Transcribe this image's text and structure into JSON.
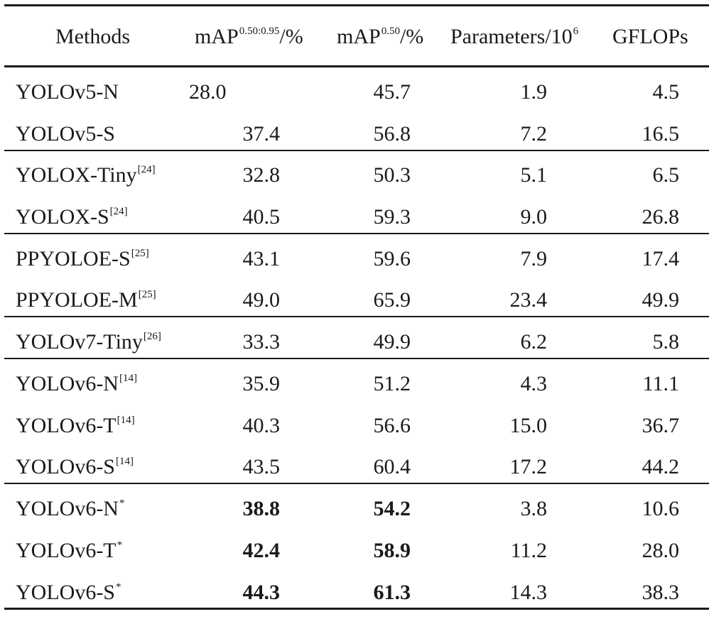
{
  "table": {
    "headers": {
      "methods": "Methods",
      "map_range_prefix": "mAP",
      "map_range_sup": "0.50:0.95",
      "map_range_suffix": "/%",
      "map50_prefix": "mAP",
      "map50_sup": "0.50",
      "map50_suffix": "/%",
      "params_prefix": "Parameters/10",
      "params_sup": "6",
      "gflops": "GFLOPs"
    },
    "rows": [
      {
        "method": "YOLOv5-N",
        "ref": "",
        "map": "28.0",
        "map50": "45.7",
        "params": "1.9",
        "gflops": "4.5",
        "bold": false
      },
      {
        "method": "YOLOv5-S",
        "ref": "",
        "map": "37.4",
        "map50": "56.8",
        "params": "7.2",
        "gflops": "16.5",
        "bold": false
      },
      {
        "method": "YOLOX-Tiny",
        "ref": "[24]",
        "map": "32.8",
        "map50": "50.3",
        "params": "5.1",
        "gflops": "6.5",
        "bold": false
      },
      {
        "method": "YOLOX-S",
        "ref": "[24]",
        "map": "40.5",
        "map50": "59.3",
        "params": "9.0",
        "gflops": "26.8",
        "bold": false
      },
      {
        "method": "PPYOLOE-S",
        "ref": "[25]",
        "map": "43.1",
        "map50": "59.6",
        "params": "7.9",
        "gflops": "17.4",
        "bold": false
      },
      {
        "method": "PPYOLOE-M",
        "ref": "[25]",
        "map": "49.0",
        "map50": "65.9",
        "params": "23.4",
        "gflops": "49.9",
        "bold": false
      },
      {
        "method": "YOLOv7-Tiny",
        "ref": "[26]",
        "map": "33.3",
        "map50": "49.9",
        "params": "6.2",
        "gflops": "5.8",
        "bold": false
      },
      {
        "method": "YOLOv6-N",
        "ref": "[14]",
        "map": "35.9",
        "map50": "51.2",
        "params": "4.3",
        "gflops": "11.1",
        "bold": false
      },
      {
        "method": "YOLOv6-T",
        "ref": "[14]",
        "map": "40.3",
        "map50": "56.6",
        "params": "15.0",
        "gflops": "36.7",
        "bold": false
      },
      {
        "method": "YOLOv6-S",
        "ref": "[14]",
        "map": "43.5",
        "map50": "60.4",
        "params": "17.2",
        "gflops": "44.2",
        "bold": false
      },
      {
        "method": "YOLOv6-N",
        "ref": "*",
        "map": "38.8",
        "map50": "54.2",
        "params": "3.8",
        "gflops": "10.6",
        "bold": true
      },
      {
        "method": "YOLOv6-T",
        "ref": "*",
        "map": "42.4",
        "map50": "58.9",
        "params": "11.2",
        "gflops": "28.0",
        "bold": true
      },
      {
        "method": "YOLOv6-S",
        "ref": "*",
        "map": "44.3",
        "map50": "61.3",
        "params": "14.3",
        "gflops": "38.3",
        "bold": true
      }
    ]
  }
}
